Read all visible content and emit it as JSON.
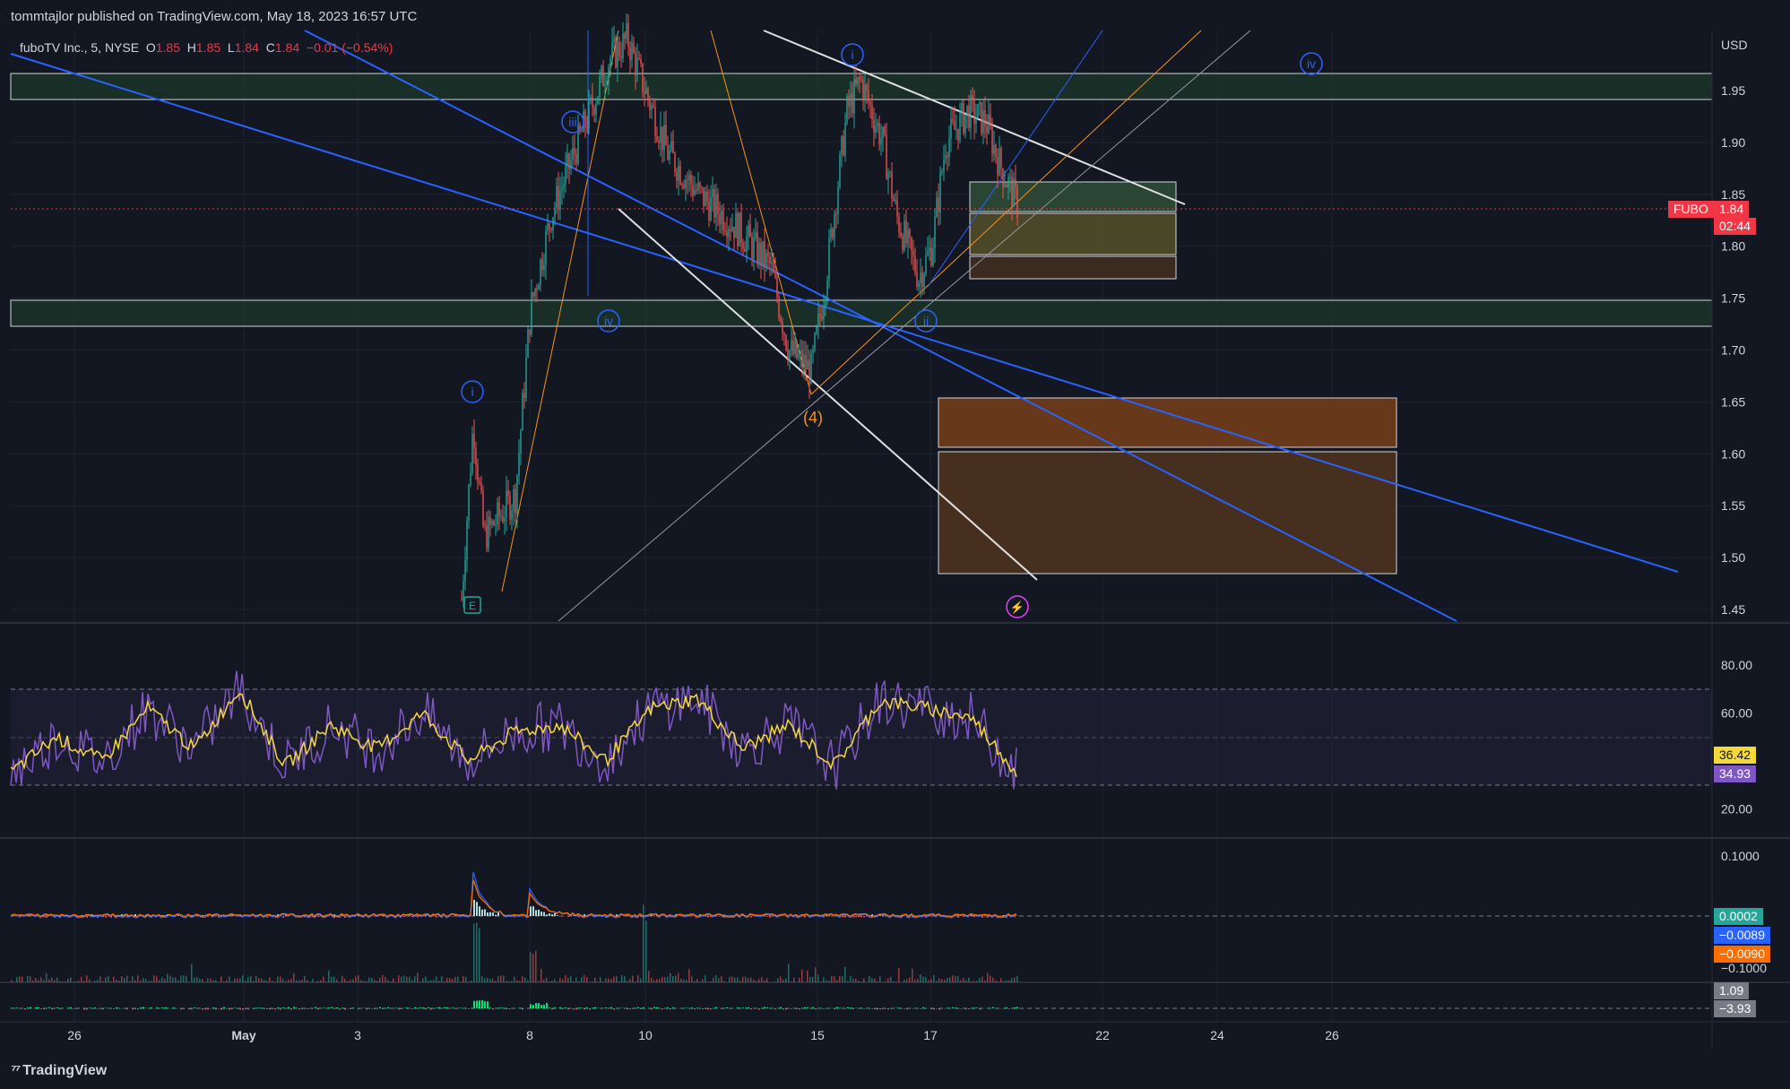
{
  "publisher": "tommtajlor published on TradingView.com, May 18, 2023 16:57 UTC",
  "footer_logo": "TradingView",
  "legend": {
    "title": "fuboTV Inc., 5, NYSE",
    "o_label": "O",
    "o": "1.85",
    "h_label": "H",
    "h": "1.85",
    "l_label": "L",
    "l": "1.84",
    "c_label": "C",
    "c": "1.84",
    "change": "−0.01 (−0.54%)"
  },
  "price_axis": {
    "currency": "USD",
    "ticks": [
      "1.95",
      "1.90",
      "1.85",
      "1.80",
      "1.75",
      "1.70",
      "1.65",
      "1.60",
      "1.55",
      "1.50",
      "1.45"
    ]
  },
  "price_badge": {
    "symbol": "FUBO",
    "price": "1.84",
    "countdown": "02:44"
  },
  "rsi_axis": {
    "ticks": [
      "80.00",
      "60.00",
      "20.00"
    ],
    "badge_1": "36.42",
    "badge_2": "34.93"
  },
  "macd_axis": {
    "ticks": [
      "0.1000",
      "−0.1000"
    ],
    "badge_1": "0.0002",
    "badge_2": "−0.0089",
    "badge_3": "−0.0090"
  },
  "lower_axis": {
    "badge_1": "1.09",
    "badge_2": "−3.93"
  },
  "time_axis": {
    "ticks": [
      "26",
      "May",
      "3",
      "8",
      "10",
      "15",
      "17",
      "22",
      "24",
      "26"
    ]
  },
  "wave_labels": [
    "i",
    "iii",
    "iv",
    "i",
    "ii",
    "iv",
    "(4)",
    "E"
  ],
  "colors": {
    "bg": "#131722",
    "grid": "#1f2330",
    "bull": "#26a69a",
    "bear": "#ef5350",
    "blue": "#2962ff",
    "orange": "#f7931a",
    "rsi": "#7e57c2",
    "rsi_ma": "#f5d93b",
    "zone_green": "#1b3a2a",
    "zone_brown": "#6b3a1a"
  },
  "chart_data": [
    {
      "type": "candlestick",
      "title": "fuboTV Inc., 5, NYSE",
      "ylabel": "USD",
      "ylim": [
        1.425,
        2.005
      ],
      "x_ticks": [
        "26",
        "May",
        "3",
        "8",
        "10",
        "15",
        "17",
        "22",
        "24",
        "26"
      ],
      "last_close": 1.84,
      "points": [
        [
          "May 5",
          1.47
        ],
        [
          "May 5",
          1.63
        ],
        [
          "May 5",
          1.55
        ],
        [
          "May 8",
          1.58
        ],
        [
          "May 8",
          1.75
        ],
        [
          "May 8",
          1.85
        ],
        [
          "May 9",
          1.9
        ],
        [
          "May 9",
          2.0
        ],
        [
          "May 10",
          1.98
        ],
        [
          "May 10",
          1.9
        ],
        [
          "May 11",
          1.87
        ],
        [
          "May 12",
          1.82
        ],
        [
          "May 12",
          1.78
        ],
        [
          "May 15",
          1.7
        ],
        [
          "May 15",
          1.68
        ],
        [
          "May 15",
          1.76
        ],
        [
          "May 16",
          1.92
        ],
        [
          "May 16",
          1.96
        ],
        [
          "May 16",
          1.88
        ],
        [
          "May 16",
          1.84
        ],
        [
          "May 17",
          1.79
        ],
        [
          "May 17",
          1.75
        ],
        [
          "May 17",
          1.86
        ],
        [
          "May 18",
          1.92
        ],
        [
          "May 18",
          1.95
        ],
        [
          "May 18",
          1.89
        ],
        [
          "May 18",
          1.84
        ]
      ]
    },
    {
      "type": "line",
      "title": "RSI",
      "ylim": [
        10,
        90
      ],
      "series": [
        {
          "values": [
            35,
            50,
            40,
            62,
            45,
            70,
            38,
            55,
            45,
            60,
            40,
            52,
            55,
            40,
            62,
            66,
            45,
            55,
            38,
            65,
            62,
            58,
            35
          ]
        }
      ],
      "last_values": [
        36.42,
        34.93
      ],
      "levels": [
        70,
        30
      ]
    },
    {
      "type": "line",
      "title": "MACD",
      "ylim": [
        -0.1,
        0.1
      ],
      "last_values": [
        0.0002,
        -0.0089,
        -0.009
      ]
    }
  ]
}
